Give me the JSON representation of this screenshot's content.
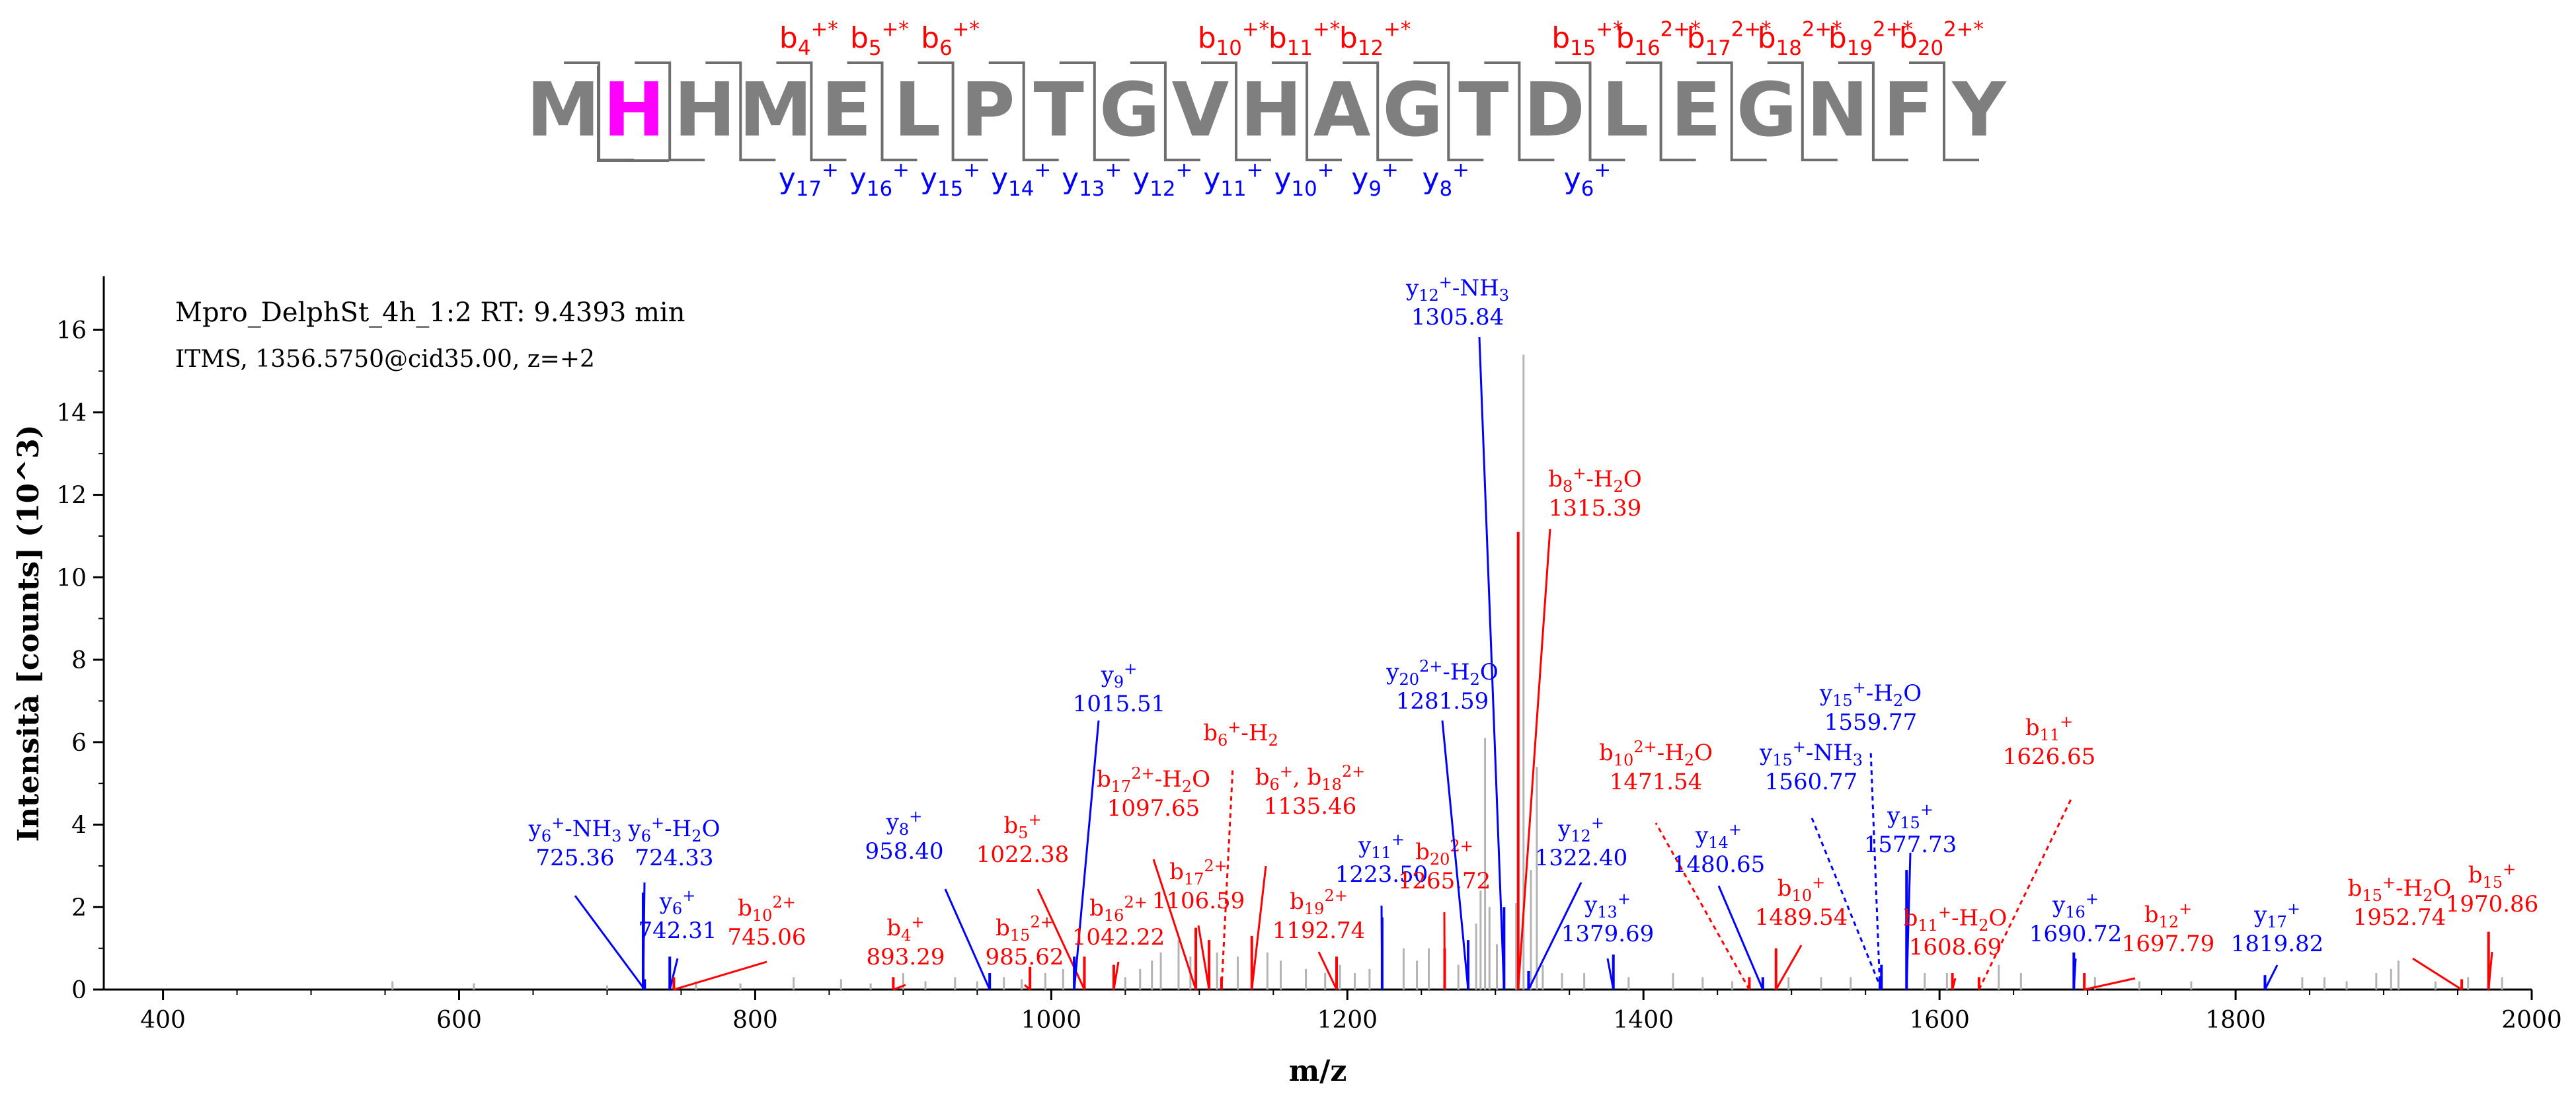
{
  "sequence": {
    "residues": [
      "M",
      "H",
      "H",
      "M",
      "E",
      "L",
      "P",
      "T",
      "G",
      "V",
      "H",
      "A",
      "G",
      "T",
      "D",
      "L",
      "E",
      "G",
      "N",
      "F",
      "Y"
    ],
    "highlight_index": 1,
    "residue_color": "#7f7f7f",
    "highlight_color": "#ff00ff",
    "b_labels": [
      {
        "after": 4,
        "base": "b",
        "sub": "4",
        "sup": "+*"
      },
      {
        "after": 5,
        "base": "b",
        "sub": "5",
        "sup": "+*"
      },
      {
        "after": 6,
        "base": "b",
        "sub": "6",
        "sup": "+*"
      },
      {
        "after": 10,
        "base": "b",
        "sub": "10",
        "sup": "+*"
      },
      {
        "after": 11,
        "base": "b",
        "sub": "11",
        "sup": "+*"
      },
      {
        "after": 12,
        "base": "b",
        "sub": "12",
        "sup": "+*"
      },
      {
        "after": 15,
        "base": "b",
        "sub": "15",
        "sup": "+*"
      },
      {
        "after": 16,
        "base": "b",
        "sub": "16",
        "sup": "2+*"
      },
      {
        "after": 17,
        "base": "b",
        "sub": "17",
        "sup": "2+*"
      },
      {
        "after": 18,
        "base": "b",
        "sub": "18",
        "sup": "2+*"
      },
      {
        "after": 19,
        "base": "b",
        "sub": "19",
        "sup": "2+*"
      },
      {
        "after": 20,
        "base": "b",
        "sub": "20",
        "sup": "2+*"
      }
    ],
    "y_labels": [
      {
        "after": 4,
        "base": "y",
        "sub": "17",
        "sup": "+"
      },
      {
        "after": 5,
        "base": "y",
        "sub": "16",
        "sup": "+"
      },
      {
        "after": 6,
        "base": "y",
        "sub": "15",
        "sup": "+"
      },
      {
        "after": 7,
        "base": "y",
        "sub": "14",
        "sup": "+"
      },
      {
        "after": 8,
        "base": "y",
        "sub": "13",
        "sup": "+"
      },
      {
        "after": 9,
        "base": "y",
        "sub": "12",
        "sup": "+"
      },
      {
        "after": 10,
        "base": "y",
        "sub": "11",
        "sup": "+"
      },
      {
        "after": 11,
        "base": "y",
        "sub": "10",
        "sup": "+"
      },
      {
        "after": 12,
        "base": "y",
        "sub": "9",
        "sup": "+"
      },
      {
        "after": 13,
        "base": "y",
        "sub": "8",
        "sup": "+"
      },
      {
        "after": 15,
        "base": "y",
        "sub": "6",
        "sup": "+"
      }
    ]
  },
  "info": {
    "line1": "Mpro_DelphSt_4h_1:2  RT: 9.4393 min",
    "line2": "ITMS, 1356.5750@cid35.00, z=+2"
  },
  "chart_data": {
    "type": "bar",
    "title": "",
    "xlabel": "m/z",
    "ylabel": "Intensità [counts] (10^3)",
    "xlim": [
      360,
      2000
    ],
    "ylim": [
      0,
      17.3
    ],
    "xticks": [
      400,
      600,
      800,
      1000,
      1200,
      1400,
      1600,
      1800,
      2000
    ],
    "yticks": [
      0,
      2,
      4,
      6,
      8,
      10,
      12,
      14,
      16
    ],
    "colors": {
      "b": "#ff0000",
      "y": "#0000ff",
      "noise": "#b4b4b4",
      "axis": "#000000"
    },
    "noise_peaks": [
      [
        555,
        0.2
      ],
      [
        610,
        0.15
      ],
      [
        700,
        0.1
      ],
      [
        760,
        0.2
      ],
      [
        790,
        0.15
      ],
      [
        826,
        0.3
      ],
      [
        858,
        0.25
      ],
      [
        878,
        0.15
      ],
      [
        900,
        0.4
      ],
      [
        915,
        0.2
      ],
      [
        935,
        0.3
      ],
      [
        950,
        0.2
      ],
      [
        968,
        0.3
      ],
      [
        980,
        0.25
      ],
      [
        996,
        0.4
      ],
      [
        1008,
        0.5
      ],
      [
        1050,
        0.3
      ],
      [
        1060,
        0.5
      ],
      [
        1068,
        0.7
      ],
      [
        1074,
        0.9
      ],
      [
        1086,
        1.2
      ],
      [
        1094,
        0.8
      ],
      [
        1112,
        0.9
      ],
      [
        1126,
        0.8
      ],
      [
        1146,
        0.9
      ],
      [
        1155,
        0.7
      ],
      [
        1172,
        0.5
      ],
      [
        1185,
        0.4
      ],
      [
        1195,
        0.6
      ],
      [
        1205,
        0.4
      ],
      [
        1215,
        0.5
      ],
      [
        1238,
        1.0
      ],
      [
        1247,
        0.7
      ],
      [
        1255,
        1.0
      ],
      [
        1275,
        0.6
      ],
      [
        1287,
        1.6
      ],
      [
        1290,
        2.4
      ],
      [
        1293,
        6.1
      ],
      [
        1296,
        2.0
      ],
      [
        1301,
        1.1
      ],
      [
        1314,
        2.1
      ],
      [
        1319,
        15.4
      ],
      [
        1324,
        2.9
      ],
      [
        1328,
        5.4
      ],
      [
        1332,
        0.6
      ],
      [
        1345,
        0.4
      ],
      [
        1360,
        0.4
      ],
      [
        1390,
        0.3
      ],
      [
        1420,
        0.4
      ],
      [
        1440,
        0.3
      ],
      [
        1460,
        0.2
      ],
      [
        1498,
        0.3
      ],
      [
        1520,
        0.3
      ],
      [
        1540,
        0.3
      ],
      [
        1590,
        0.4
      ],
      [
        1605,
        0.4
      ],
      [
        1640,
        0.6
      ],
      [
        1655,
        0.4
      ],
      [
        1705,
        0.3
      ],
      [
        1735,
        0.2
      ],
      [
        1770,
        0.2
      ],
      [
        1845,
        0.3
      ],
      [
        1860,
        0.3
      ],
      [
        1875,
        0.2
      ],
      [
        1895,
        0.4
      ],
      [
        1905,
        0.5
      ],
      [
        1910,
        0.7
      ],
      [
        1935,
        0.2
      ],
      [
        1957,
        0.3
      ],
      [
        1980,
        0.3
      ]
    ],
    "peaks": [
      {
        "mz": 725.36,
        "intensity": 0.25,
        "ion": "y",
        "label": [
          {
            "base": "y",
            "sub": "6",
            "sup": "+",
            "tail": "-NH"
          },
          {
            "text": "725.36"
          }
        ]
      },
      {
        "mz": 724.33,
        "intensity": 2.35,
        "ion": "y",
        "label": [
          {
            "base": "y",
            "sub": "6",
            "sup": "+",
            "tail": "-H"
          },
          {
            "text": "724.33"
          }
        ]
      },
      {
        "mz": 742.31,
        "intensity": 0.8,
        "ion": "y",
        "label": [
          {
            "base": "y",
            "sub": "6",
            "sup": "+"
          },
          {
            "text": "742.31"
          }
        ]
      },
      {
        "mz": 745.06,
        "intensity": 0.3,
        "ion": "b",
        "label": [
          {
            "base": "b",
            "sub": "10",
            "sup": "2+"
          },
          {
            "text": "745.06"
          }
        ]
      },
      {
        "mz": 893.29,
        "intensity": 0.3,
        "ion": "b",
        "label": [
          {
            "base": "b",
            "sub": "4",
            "sup": "+"
          },
          {
            "text": "893.29"
          }
        ]
      },
      {
        "mz": 958.4,
        "intensity": 0.4,
        "ion": "y",
        "label": [
          {
            "base": "y",
            "sub": "8",
            "sup": "+"
          },
          {
            "text": "958.40"
          }
        ]
      },
      {
        "mz": 985.62,
        "intensity": 0.55,
        "ion": "b",
        "label": [
          {
            "base": "b",
            "sub": "15",
            "sup": "2+"
          },
          {
            "text": "985.62"
          }
        ]
      },
      {
        "mz": 1022.38,
        "intensity": 0.8,
        "ion": "b",
        "label": [
          {
            "base": "b",
            "sub": "5",
            "sup": "+"
          },
          {
            "text": "1022.38"
          }
        ]
      },
      {
        "mz": 1015.51,
        "intensity": 0.8,
        "ion": "y",
        "label": [
          {
            "base": "y",
            "sub": "9",
            "sup": "+"
          },
          {
            "text": "1015.51"
          }
        ]
      },
      {
        "mz": 1042.22,
        "intensity": 0.6,
        "ion": "b",
        "label": [
          {
            "base": "b",
            "sub": "16",
            "sup": "2+"
          },
          {
            "text": "1042.22"
          }
        ]
      },
      {
        "mz": 1097.65,
        "intensity": 1.5,
        "ion": "b",
        "label": [
          {
            "base": "b",
            "sub": "17",
            "sup": "2+",
            "tail": "-H"
          },
          {
            "text": "1097.65"
          }
        ]
      },
      {
        "mz": 1106.59,
        "intensity": 1.2,
        "ion": "b",
        "label": [
          {
            "base": "b",
            "sub": "17",
            "sup": "2+"
          },
          {
            "text": "1106.59"
          }
        ]
      },
      {
        "mz": 1115,
        "intensity": 0.3,
        "ion": "b",
        "dashed": true,
        "label": [
          {
            "base": "b",
            "sub": "6",
            "sup": "+",
            "tail": "-H"
          }
        ]
      },
      {
        "mz": 1135.46,
        "intensity": 1.3,
        "ion": "b",
        "label": [
          {
            "base": "b",
            "sub": "6",
            "sup": "+",
            "tail": ", "
          },
          {
            "text": "1135.46"
          }
        ]
      },
      {
        "mz": 1192.74,
        "intensity": 0.8,
        "ion": "b",
        "label": [
          {
            "base": "b",
            "sub": "19",
            "sup": "2+"
          },
          {
            "text": "1192.74"
          }
        ]
      },
      {
        "mz": 1223.5,
        "intensity": 1.75,
        "ion": "y",
        "label": [
          {
            "base": "y",
            "sub": "11",
            "sup": "+"
          },
          {
            "text": "1223.50"
          }
        ]
      },
      {
        "mz": 1265.72,
        "intensity": 1.0,
        "ion": "b",
        "label": [
          {
            "base": "b",
            "sub": "20",
            "sup": "2+"
          },
          {
            "text": "1265.72"
          }
        ]
      },
      {
        "mz": 1281.59,
        "intensity": 1.2,
        "ion": "y",
        "label": [
          {
            "base": "y",
            "sub": "20",
            "sup": "2+",
            "tail": "-H"
          },
          {
            "text": "1281.59"
          }
        ]
      },
      {
        "mz": 1305.84,
        "intensity": 2.0,
        "ion": "y",
        "label": [
          {
            "base": "y",
            "sub": "12",
            "sup": "+",
            "tail": "-NH"
          },
          {
            "text": "1305.84"
          }
        ]
      },
      {
        "mz": 1315.39,
        "intensity": 11.1,
        "ion": "b",
        "label": [
          {
            "base": "b",
            "sub": "8",
            "sup": "+",
            "tail": "-H"
          },
          {
            "text": "1315.39"
          }
        ]
      },
      {
        "mz": 1322.4,
        "intensity": 0.45,
        "ion": "y",
        "label": [
          {
            "base": "y",
            "sub": "12",
            "sup": "+"
          },
          {
            "text": "1322.40"
          }
        ]
      },
      {
        "mz": 1379.69,
        "intensity": 0.85,
        "ion": "y",
        "label": [
          {
            "base": "y",
            "sub": "13",
            "sup": "+"
          },
          {
            "text": "1379.69"
          }
        ]
      },
      {
        "mz": 1471.54,
        "intensity": 0.3,
        "ion": "b",
        "dashed": true,
        "label": [
          {
            "base": "b",
            "sub": "10",
            "sup": "2+",
            "tail": "-H"
          },
          {
            "text": "1471.54"
          }
        ]
      },
      {
        "mz": 1480.65,
        "intensity": 0.3,
        "ion": "y",
        "label": [
          {
            "base": "y",
            "sub": "14",
            "sup": "+"
          },
          {
            "text": "1480.65"
          }
        ]
      },
      {
        "mz": 1489.54,
        "intensity": 1.0,
        "ion": "b",
        "label": [
          {
            "base": "b",
            "sub": "10",
            "sup": "+"
          },
          {
            "text": "1489.54"
          }
        ]
      },
      {
        "mz": 1560.77,
        "intensity": 0.6,
        "ion": "y",
        "dashed": true,
        "label": [
          {
            "base": "y",
            "sub": "15",
            "sup": "+",
            "tail": "-NH"
          },
          {
            "text": "1560.77"
          }
        ]
      },
      {
        "mz": 1559.77,
        "intensity": 0.3,
        "ion": "y",
        "dashed": true,
        "label": [
          {
            "base": "y",
            "sub": "15",
            "sup": "+",
            "tail": "-H"
          },
          {
            "text": "1559.77"
          }
        ]
      },
      {
        "mz": 1577.73,
        "intensity": 2.9,
        "ion": "y",
        "label": [
          {
            "base": "y",
            "sub": "15",
            "sup": "+"
          },
          {
            "text": "1577.73"
          }
        ]
      },
      {
        "mz": 1608.69,
        "intensity": 0.4,
        "ion": "b",
        "label": [
          {
            "base": "b",
            "sub": "11",
            "sup": "+",
            "tail": "-H"
          },
          {
            "text": "1608.69"
          }
        ]
      },
      {
        "mz": 1626.65,
        "intensity": 0.3,
        "ion": "b",
        "dashed": true,
        "label": [
          {
            "base": "b",
            "sub": "11",
            "sup": "+"
          },
          {
            "text": "1626.65"
          }
        ]
      },
      {
        "mz": 1690.72,
        "intensity": 0.9,
        "ion": "y",
        "label": [
          {
            "base": "y",
            "sub": "16",
            "sup": "+"
          },
          {
            "text": "1690.72"
          }
        ]
      },
      {
        "mz": 1697.79,
        "intensity": 0.4,
        "ion": "b",
        "label": [
          {
            "base": "b",
            "sub": "12",
            "sup": "+"
          },
          {
            "text": "1697.79"
          }
        ]
      },
      {
        "mz": 1819.82,
        "intensity": 0.35,
        "ion": "y",
        "label": [
          {
            "base": "y",
            "sub": "17",
            "sup": "+"
          },
          {
            "text": "1819.82"
          }
        ]
      },
      {
        "mz": 1952.74,
        "intensity": 0.25,
        "ion": "b",
        "label": [
          {
            "base": "b",
            "sub": "15",
            "sup": "+",
            "tail": "-H"
          },
          {
            "text": "1952.74"
          }
        ]
      },
      {
        "mz": 1970.86,
        "intensity": 1.4,
        "ion": "b",
        "label": [
          {
            "base": "b",
            "sub": "15",
            "sup": "+"
          },
          {
            "text": "1970.86"
          }
        ]
      }
    ],
    "label_extras": {
      "y6_nh3": "3",
      "y6_h2o": [
        "2",
        "O"
      ],
      "b17_h2o": [
        "2",
        "O"
      ],
      "b6_h2": "2",
      "b6_b18": [
        "b",
        "18",
        "2+"
      ],
      "y20_h2o": [
        "2",
        "O"
      ],
      "y12_nh3": "3",
      "b8_h2o": [
        "2",
        "O"
      ],
      "b10_h2o": [
        "2",
        "O"
      ],
      "y15_nh3": "3",
      "y15_h2o": [
        "2",
        "O"
      ],
      "b11_h2o": [
        "2",
        "O"
      ],
      "b15_h2o": [
        "2",
        "O"
      ],
      "b12_charge": "-"
    }
  }
}
